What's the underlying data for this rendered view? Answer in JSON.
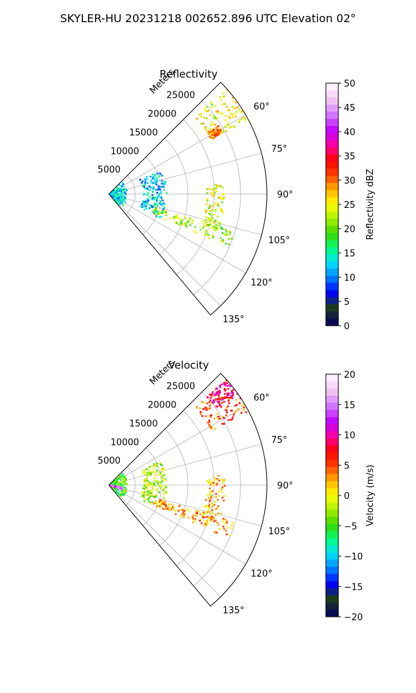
{
  "suptitle": "SKYLER-HU  20231218  002652.896 UTC Elevation 02°",
  "chart_data": [
    {
      "type": "heatmap",
      "title": "Reflectivity",
      "projection": "polar sector",
      "range_axis_label": "Meters",
      "range_ticks": [
        "5000",
        "10000",
        "15000",
        "20000",
        "25000"
      ],
      "range_tick_values": [
        5000,
        10000,
        15000,
        20000,
        25000
      ],
      "range_lim": [
        0,
        30000
      ],
      "azimuth_lim": [
        45,
        140
      ],
      "azimuth_ticks": [
        "60°",
        "75°",
        "90°",
        "105°",
        "120°",
        "135°"
      ],
      "azimuth_tick_values": [
        60,
        75,
        90,
        105,
        120,
        135
      ],
      "grid": true,
      "colorbar": {
        "label": "Reflectivity dBZ",
        "range": [
          0,
          50
        ],
        "ticks": [
          "0",
          "5",
          "10",
          "15",
          "20",
          "25",
          "30",
          "35",
          "40",
          "45",
          "50"
        ],
        "tick_values": [
          0,
          5,
          10,
          15,
          20,
          25,
          30,
          35,
          40,
          45,
          50
        ],
        "colormap": [
          "#0a0a52",
          "#1c3d1c",
          "#0000ff",
          "#0080ff",
          "#00e0ff",
          "#00ff80",
          "#39d600",
          "#a6f000",
          "#ffff00",
          "#ffb000",
          "#ff4000",
          "#ff0000",
          "#ff00a0",
          "#c000ff",
          "#d070ff",
          "#f0c0f0",
          "#fff0ff"
        ]
      },
      "features": [
        {
          "name": "near-range echo",
          "az": [
            47,
            135
          ],
          "r": [
            0,
            3500
          ],
          "value": 13
        },
        {
          "name": "inner arc",
          "az": [
            65,
            115
          ],
          "r": [
            6500,
            11000
          ],
          "value": 12
        },
        {
          "name": "radial line",
          "az": [
            85,
            109
          ],
          "r": [
            18500,
            22000
          ],
          "value": 24
        },
        {
          "name": "lower band",
          "az": [
            106,
            114
          ],
          "r": [
            9000,
            25000
          ],
          "value": 22
        },
        {
          "name": "far sector echo",
          "az": [
            48,
            62
          ],
          "r": [
            22000,
            30000
          ],
          "value": 25
        },
        {
          "name": "far sector core",
          "az": [
            58,
            62
          ],
          "r": [
            22000,
            24500
          ],
          "value": 30
        }
      ]
    },
    {
      "type": "heatmap",
      "title": "Velocity",
      "projection": "polar sector",
      "range_axis_label": "Meters",
      "range_ticks": [
        "5000",
        "10000",
        "15000",
        "20000",
        "25000"
      ],
      "range_tick_values": [
        5000,
        10000,
        15000,
        20000,
        25000
      ],
      "range_lim": [
        0,
        30000
      ],
      "azimuth_lim": [
        45,
        140
      ],
      "azimuth_ticks": [
        "60°",
        "75°",
        "90°",
        "105°",
        "120°",
        "135°"
      ],
      "azimuth_tick_values": [
        60,
        75,
        90,
        105,
        120,
        135
      ],
      "grid": true,
      "colorbar": {
        "label": "Velocity (m/s)",
        "range": [
          -20,
          20
        ],
        "ticks": [
          "−20",
          "−15",
          "−10",
          "−5",
          "0",
          "5",
          "10",
          "15",
          "20"
        ],
        "tick_values": [
          -20,
          -15,
          -10,
          -5,
          0,
          5,
          10,
          15,
          20
        ],
        "colormap": [
          "#0a0a52",
          "#1c3d1c",
          "#0000ff",
          "#0080ff",
          "#00e0ff",
          "#00ff80",
          "#39d600",
          "#a6f000",
          "#ffff00",
          "#ffb000",
          "#ff4000",
          "#ff0000",
          "#ff00a0",
          "#c000ff",
          "#d070ff",
          "#f0c0f0",
          "#fff0ff"
        ]
      },
      "features": [
        {
          "name": "near-range echo",
          "az": [
            47,
            135
          ],
          "r": [
            0,
            3500
          ],
          "value": -5
        },
        {
          "name": "near-range core",
          "az": [
            98,
            110
          ],
          "r": [
            0,
            2600
          ],
          "value": 15
        },
        {
          "name": "inner arc",
          "az": [
            65,
            115
          ],
          "r": [
            6500,
            11000
          ],
          "value": -2
        },
        {
          "name": "radial line",
          "az": [
            85,
            109
          ],
          "r": [
            18500,
            22000
          ],
          "value": 2
        },
        {
          "name": "lower band",
          "az": [
            106,
            114
          ],
          "r": [
            9000,
            25000
          ],
          "value": 3
        },
        {
          "name": "far sector echo",
          "az": [
            48,
            62
          ],
          "r": [
            22000,
            30000
          ],
          "value": 5
        },
        {
          "name": "far sector core",
          "az": [
            48,
            55
          ],
          "r": [
            25000,
            30000
          ],
          "value": 10
        }
      ]
    }
  ]
}
